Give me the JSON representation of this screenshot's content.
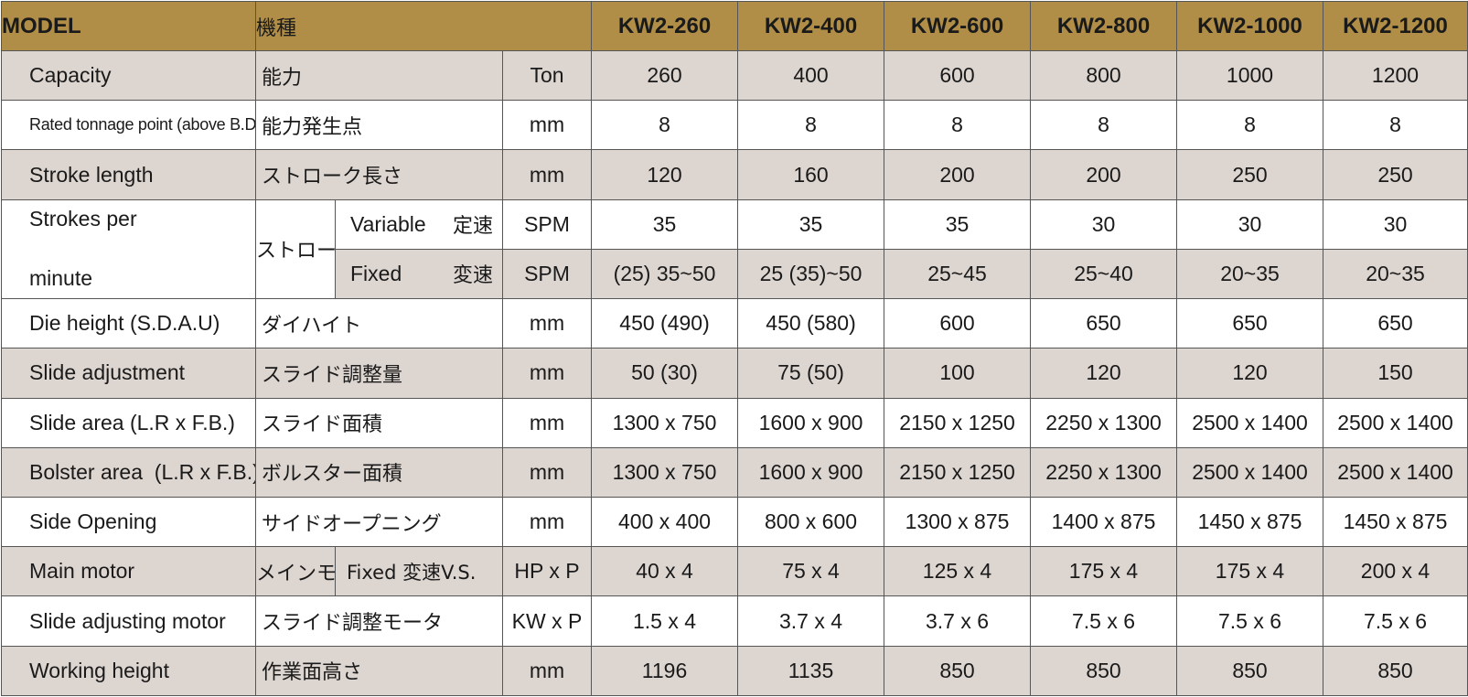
{
  "header": {
    "model_en": "MODEL",
    "model_jp": "機種",
    "models": [
      "KW2-260",
      "KW2-400",
      "KW2-600",
      "KW2-800",
      "KW2-1000",
      "KW2-1200"
    ]
  },
  "rows": {
    "capacity": {
      "en": "Capacity",
      "jp": "能力",
      "unit": "Ton",
      "values": [
        "260",
        "400",
        "600",
        "800",
        "1000",
        "1200"
      ]
    },
    "rated_point": {
      "en": "Rated tonnage point (above B.D.C)",
      "jp": "能力発生点",
      "unit": "mm",
      "values": [
        "8",
        "8",
        "8",
        "8",
        "8",
        "8"
      ]
    },
    "stroke_length": {
      "en": "Stroke length",
      "jp": "ストローク長さ",
      "unit": "mm",
      "values": [
        "120",
        "160",
        "200",
        "200",
        "250",
        "250"
      ]
    },
    "spm": {
      "en_line1": "Strokes per",
      "en_line2": "minute",
      "jp": "ストローク数",
      "variable": {
        "en": "Variable",
        "jp": "定速",
        "unit": "SPM",
        "values": [
          "35",
          "35",
          "35",
          "30",
          "30",
          "30"
        ]
      },
      "fixed": {
        "en": "Fixed",
        "jp": "変速",
        "unit": "SPM",
        "values": [
          "(25) 35~50",
          "25 (35)~50",
          "25~45",
          "25~40",
          "20~35",
          "20~35"
        ]
      }
    },
    "die_height": {
      "en": "Die height (S.D.A.U)",
      "jp": "ダイハイト",
      "unit": "mm",
      "values": [
        "450 (490)",
        "450 (580)",
        "600",
        "650",
        "650",
        "650"
      ]
    },
    "slide_adjustment": {
      "en": "Slide adjustment",
      "jp": "スライド調整量",
      "unit": "mm",
      "values": [
        "50 (30)",
        "75 (50)",
        "100",
        "120",
        "120",
        "150"
      ]
    },
    "slide_area": {
      "en": "Slide area (L.R x F.B.)",
      "jp": "スライド面積",
      "unit": "mm",
      "values": [
        "1300 x 750",
        "1600 x 900",
        "2150 x 1250",
        "2250 x 1300",
        "2500 x 1400",
        "2500 x 1400"
      ]
    },
    "bolster_area": {
      "en": "Bolster area  (L.R x F.B.)",
      "jp": "ボルスター面積",
      "unit": "mm",
      "values": [
        "1300 x 750",
        "1600 x 900",
        "2150 x 1250",
        "2250 x 1300",
        "2500 x 1400",
        "2500 x 1400"
      ]
    },
    "side_opening": {
      "en": "Side Opening",
      "jp": "サイドオープニング",
      "unit": "mm",
      "values": [
        "400 x 400",
        "800 x 600",
        "1300 x 875",
        "1400 x 875",
        "1450 x 875",
        "1450 x 875"
      ]
    },
    "main_motor": {
      "en": "Main motor",
      "jp": "メインモータ",
      "sub": "Fixed 変速V.S.",
      "unit": "HP x P",
      "values": [
        "40 x 4",
        "75 x 4",
        "125 x 4",
        "175 x 4",
        "175 x 4",
        "200 x 4"
      ]
    },
    "slide_motor": {
      "en": "Slide adjusting motor",
      "jp": "スライド調整モータ",
      "unit": "KW x P",
      "values": [
        "1.5 x 4",
        "3.7 x 4",
        "3.7 x 6",
        "7.5 x 6",
        "7.5 x 6",
        "7.5 x 6"
      ]
    },
    "working_height": {
      "en": "Working height",
      "jp": "作業面高さ",
      "unit": "mm",
      "values": [
        "1196",
        "1135",
        "850",
        "850",
        "850",
        "850"
      ]
    }
  },
  "colors": {
    "header_bg": "#b08e47",
    "shade_bg": "#ddd5d0",
    "border": "#555555"
  }
}
